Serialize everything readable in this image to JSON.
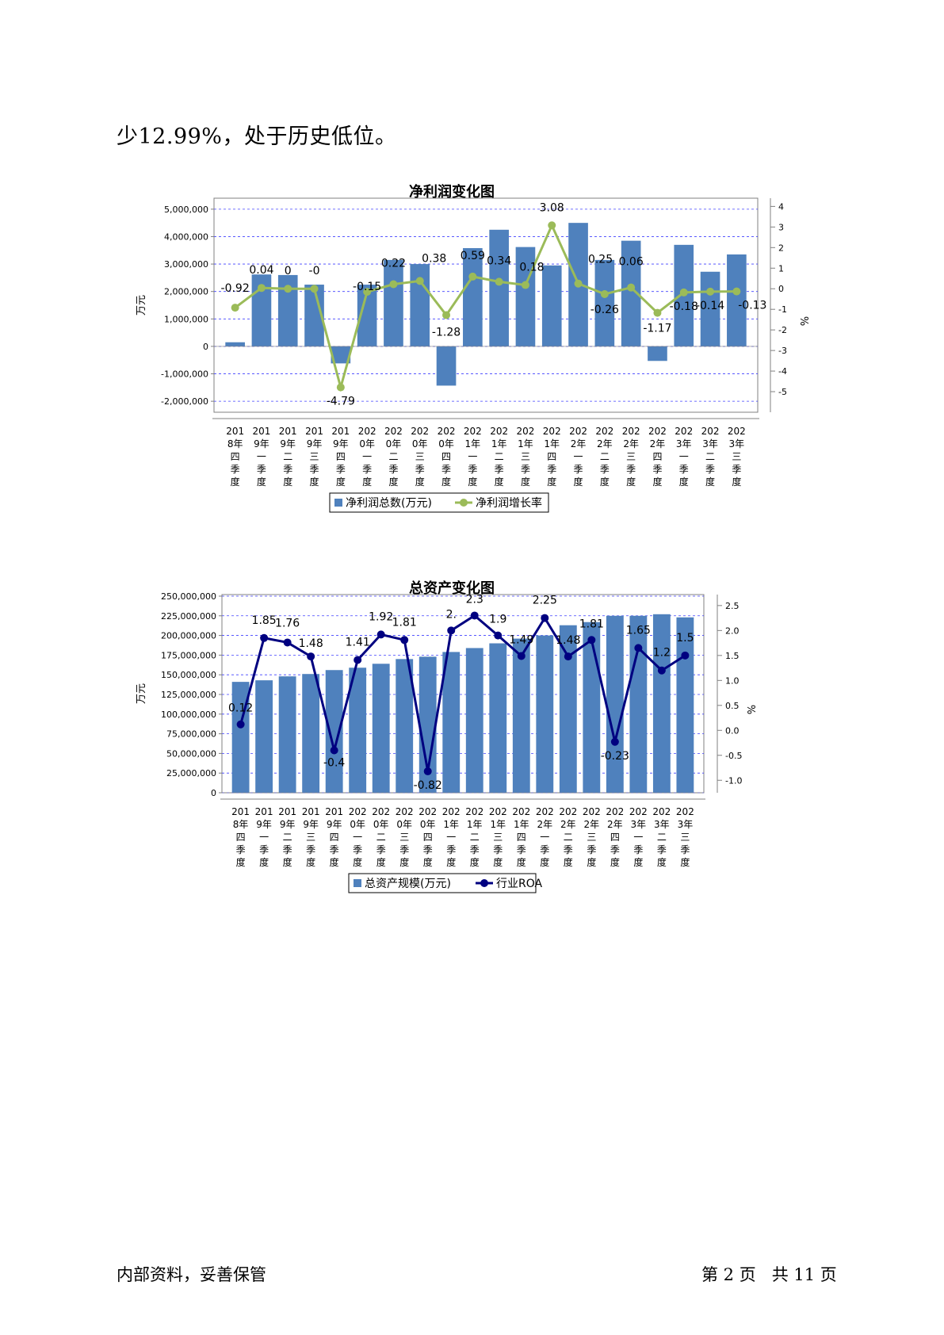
{
  "intro_text": "少12.99%，处于历史低位。",
  "footer": {
    "left": "内部资料，妥善保管",
    "right": "第 2 页   共 11 页"
  },
  "colors": {
    "bar": "#4f81bd",
    "line1": "#9bbb59",
    "line2": "#000080",
    "grid": "#4040ff"
  },
  "chart_data": [
    {
      "type": "bar",
      "title": "净利润变化图",
      "ylabel": "万元",
      "y2label": "%",
      "categories": [
        "2018年四季度",
        "2019年一季度",
        "2019年二季度",
        "2019年三季度",
        "2019年四季度",
        "2020年一季度",
        "2020年二季度",
        "2020年三季度",
        "2020年四季度",
        "2021年一季度",
        "2021年二季度",
        "2021年三季度",
        "2021年四季度",
        "2022年一季度",
        "2022年二季度",
        "2022年三季度",
        "2022年四季度",
        "2023年一季度",
        "2023年二季度",
        "2023年三季度"
      ],
      "category_labels": [
        [
          "201",
          "8年",
          "四",
          "季",
          "度"
        ],
        [
          "201",
          "9年",
          "一",
          "季",
          "度"
        ],
        [
          "201",
          "9年",
          "二",
          "季",
          "度"
        ],
        [
          "201",
          "9年",
          "三",
          "季",
          "度"
        ],
        [
          "201",
          "9年",
          "四",
          "季",
          "度"
        ],
        [
          "202",
          "0年",
          "一",
          "季",
          "度"
        ],
        [
          "202",
          "0年",
          "二",
          "季",
          "度"
        ],
        [
          "202",
          "0年",
          "三",
          "季",
          "度"
        ],
        [
          "202",
          "0年",
          "四",
          "季",
          "度"
        ],
        [
          "202",
          "1年",
          "一",
          "季",
          "度"
        ],
        [
          "202",
          "1年",
          "二",
          "季",
          "度"
        ],
        [
          "202",
          "1年",
          "三",
          "季",
          "度"
        ],
        [
          "202",
          "1年",
          "四",
          "季",
          "度"
        ],
        [
          "202",
          "2年",
          "一",
          "季",
          "度"
        ],
        [
          "202",
          "2年",
          "二",
          "季",
          "度"
        ],
        [
          "202",
          "2年",
          "三",
          "季",
          "度"
        ],
        [
          "202",
          "2年",
          "四",
          "季",
          "度"
        ],
        [
          "202",
          "3年",
          "一",
          "季",
          "度"
        ],
        [
          "202",
          "3年",
          "二",
          "季",
          "度"
        ],
        [
          "202",
          "3年",
          "三",
          "季",
          "度"
        ]
      ],
      "ylim": [
        -2400000,
        5400000
      ],
      "yticks": [
        -2000000,
        -1000000,
        0,
        1000000,
        2000000,
        3000000,
        4000000,
        5000000
      ],
      "ytick_labels": [
        "-2,000,000",
        "-1,000,000",
        "0",
        "1,000,000",
        "2,000,000",
        "3,000,000",
        "4,000,000",
        "5,000,000"
      ],
      "y2lim": [
        -6,
        4.4
      ],
      "y2ticks": [
        -5,
        -4,
        -3,
        -2,
        -1,
        0,
        1,
        2,
        3,
        4
      ],
      "y2tick_labels": [
        "-5",
        "-4",
        "-3",
        "-2",
        "-1",
        "0",
        "1",
        "2",
        "3",
        "4"
      ],
      "series": [
        {
          "name": "净利润总数(万元)",
          "kind": "bar",
          "values": [
            150000,
            2620000,
            2600000,
            2250000,
            -620000,
            2250000,
            3150000,
            3000000,
            -1430000,
            3580000,
            4250000,
            3620000,
            2950000,
            4500000,
            3150000,
            3850000,
            -530000,
            3700000,
            2720000,
            3350000
          ]
        },
        {
          "name": "净利润增长率",
          "kind": "line",
          "axis": "right",
          "values": [
            -0.92,
            0.04,
            0,
            0,
            -4.79,
            -0.15,
            0.22,
            0.38,
            -1.28,
            0.59,
            0.34,
            0.18,
            3.08,
            0.25,
            -0.26,
            0.06,
            -1.17,
            -0.18,
            -0.14,
            -0.13
          ],
          "labels": [
            "-0.92",
            "0.04",
            "0",
            "-0",
            "-4.79",
            "-0.15",
            "0.22",
            "0.38",
            "-1.28",
            "0.59",
            "0.34",
            "0.18",
            "3.08",
            "0.25",
            "-0.26",
            "0.06",
            "-1.17",
            "-0.18",
            "-0.14",
            "-0.13"
          ]
        }
      ],
      "grid": true,
      "legend": "bottom"
    },
    {
      "type": "bar",
      "title": "总资产变化图",
      "ylabel": "万元",
      "y2label": "%",
      "categories": [
        "2018年四季度",
        "2019年一季度",
        "2019年二季度",
        "2019年三季度",
        "2019年四季度",
        "2020年一季度",
        "2020年二季度",
        "2020年三季度",
        "2020年四季度",
        "2021年一季度",
        "2021年二季度",
        "2021年三季度",
        "2021年四季度",
        "2022年一季度",
        "2022年二季度",
        "2022年三季度",
        "2022年四季度",
        "2023年一季度",
        "2023年二季度",
        "2023年三季度"
      ],
      "category_labels": [
        [
          "201",
          "8年",
          "四",
          "季",
          "度"
        ],
        [
          "201",
          "9年",
          "一",
          "季",
          "度"
        ],
        [
          "201",
          "9年",
          "二",
          "季",
          "度"
        ],
        [
          "201",
          "9年",
          "三",
          "季",
          "度"
        ],
        [
          "201",
          "9年",
          "四",
          "季",
          "度"
        ],
        [
          "202",
          "0年",
          "一",
          "季",
          "度"
        ],
        [
          "202",
          "0年",
          "二",
          "季",
          "度"
        ],
        [
          "202",
          "0年",
          "三",
          "季",
          "度"
        ],
        [
          "202",
          "0年",
          "四",
          "季",
          "度"
        ],
        [
          "202",
          "1年",
          "一",
          "季",
          "度"
        ],
        [
          "202",
          "1年",
          "二",
          "季",
          "度"
        ],
        [
          "202",
          "1年",
          "三",
          "季",
          "度"
        ],
        [
          "202",
          "1年",
          "四",
          "季",
          "度"
        ],
        [
          "202",
          "2年",
          "一",
          "季",
          "度"
        ],
        [
          "202",
          "2年",
          "二",
          "季",
          "度"
        ],
        [
          "202",
          "2年",
          "三",
          "季",
          "度"
        ],
        [
          "202",
          "2年",
          "四",
          "季",
          "度"
        ],
        [
          "202",
          "3年",
          "一",
          "季",
          "度"
        ],
        [
          "202",
          "3年",
          "二",
          "季",
          "度"
        ],
        [
          "202",
          "3年",
          "三",
          "季",
          "度"
        ]
      ],
      "ylim": [
        0,
        252000000
      ],
      "yticks": [
        0,
        25000000,
        50000000,
        75000000,
        100000000,
        125000000,
        150000000,
        175000000,
        200000000,
        225000000,
        250000000
      ],
      "ytick_labels": [
        "0",
        "25,000,000",
        "50,000,000",
        "75,000,000",
        "100,000,000",
        "125,000,000",
        "150,000,000",
        "175,000,000",
        "200,000,000",
        "225,000,000",
        "250,000,000"
      ],
      "y2lim": [
        -1.25,
        2.72
      ],
      "y2ticks": [
        -1.0,
        -0.5,
        0.0,
        0.5,
        1.0,
        1.5,
        2.0,
        2.5
      ],
      "y2tick_labels": [
        "-1.0",
        "-0.5",
        "0.0",
        "0.5",
        "1.0",
        "1.5",
        "2.0",
        "2.5"
      ],
      "series": [
        {
          "name": "总资产规模(万元)",
          "kind": "bar",
          "values": [
            141000000,
            143000000,
            148000000,
            151000000,
            156000000,
            159000000,
            164000000,
            170000000,
            173000000,
            179000000,
            184000000,
            190000000,
            196000000,
            200000000,
            213000000,
            217000000,
            225000000,
            225000000,
            227000000,
            223000000
          ]
        },
        {
          "name": "行业ROA",
          "kind": "line",
          "axis": "right",
          "values": [
            0.12,
            1.85,
            1.76,
            1.48,
            -0.4,
            1.41,
            1.92,
            1.81,
            -0.82,
            2.0,
            2.3,
            1.9,
            1.49,
            2.25,
            1.48,
            1.81,
            -0.23,
            1.65,
            1.2,
            1.5
          ],
          "labels": [
            "0.12",
            "1.85",
            "1.76",
            "1.48",
            "-0.4",
            "1.41",
            "1.92",
            "1.81",
            "-0.82",
            "2.",
            "2.3",
            "1.9",
            "1.49",
            "2.25",
            "1.48",
            "1.81",
            "-0.23",
            "1.65",
            "1.2",
            "1.5"
          ]
        }
      ],
      "grid": true,
      "legend": "bottom"
    }
  ]
}
